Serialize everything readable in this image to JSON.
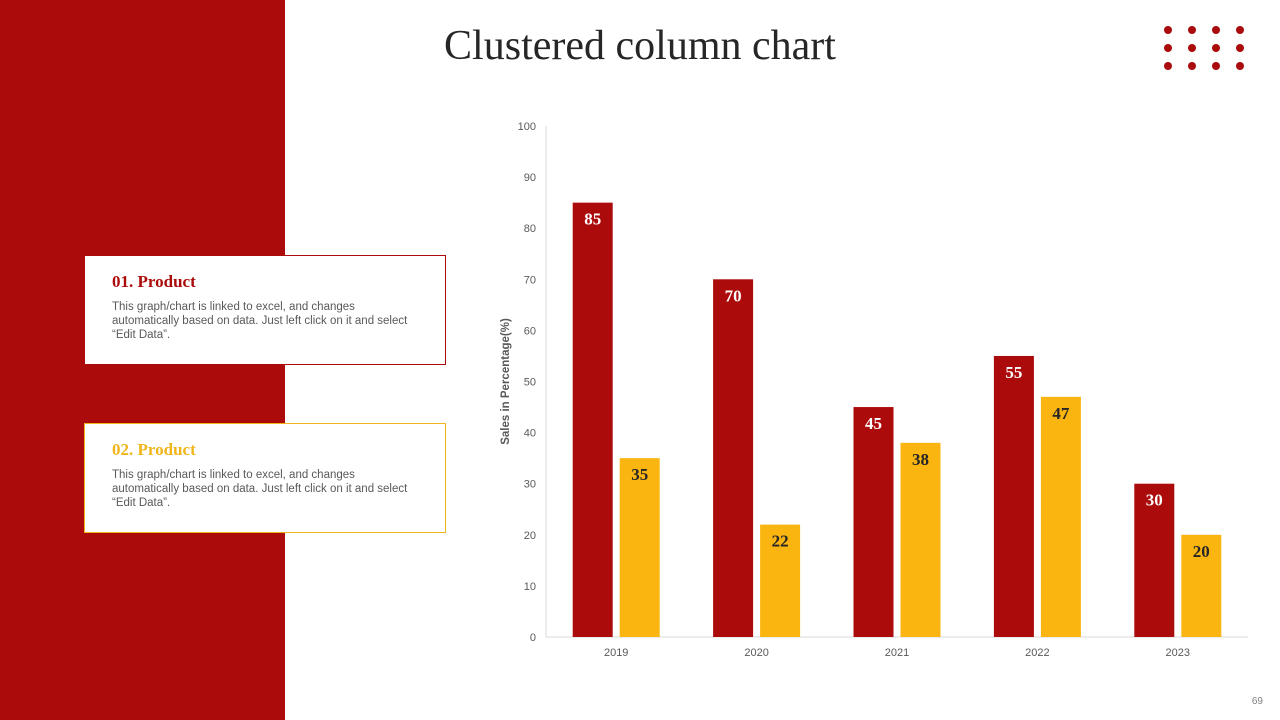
{
  "slide": {
    "title": "Clustered column chart",
    "page_number": "69"
  },
  "cards": [
    {
      "title": "01. Product",
      "body": "This graph/chart is linked to excel, and changes automatically based on data. Just left click on it and select “Edit Data”."
    },
    {
      "title": "02. Product",
      "body": "This graph/chart is linked to excel, and changes automatically based on data. Just left click on it and select “Edit Data”."
    }
  ],
  "colors": {
    "brand_red": "#ac0b0b",
    "brand_yellow": "#fbb511",
    "title_text": "#262626"
  },
  "decor": {
    "dot_grid": "dot-grid-4x3"
  },
  "chart_data": {
    "type": "bar",
    "title": "",
    "xlabel": "",
    "ylabel": "Sales in Percentage(%)",
    "categories": [
      "2019",
      "2020",
      "2021",
      "2022",
      "2023"
    ],
    "series": [
      {
        "values": [
          85,
          70,
          45,
          55,
          30
        ],
        "color": "#ac0b0b"
      },
      {
        "values": [
          35,
          22,
          38,
          47,
          20
        ],
        "color": "#fbb511"
      }
    ],
    "ylim": [
      0,
      100
    ],
    "yticks": [
      0,
      10,
      20,
      30,
      40,
      50,
      60,
      70,
      80,
      90,
      100
    ],
    "grid": false,
    "legend": "none",
    "data_labels": true
  }
}
